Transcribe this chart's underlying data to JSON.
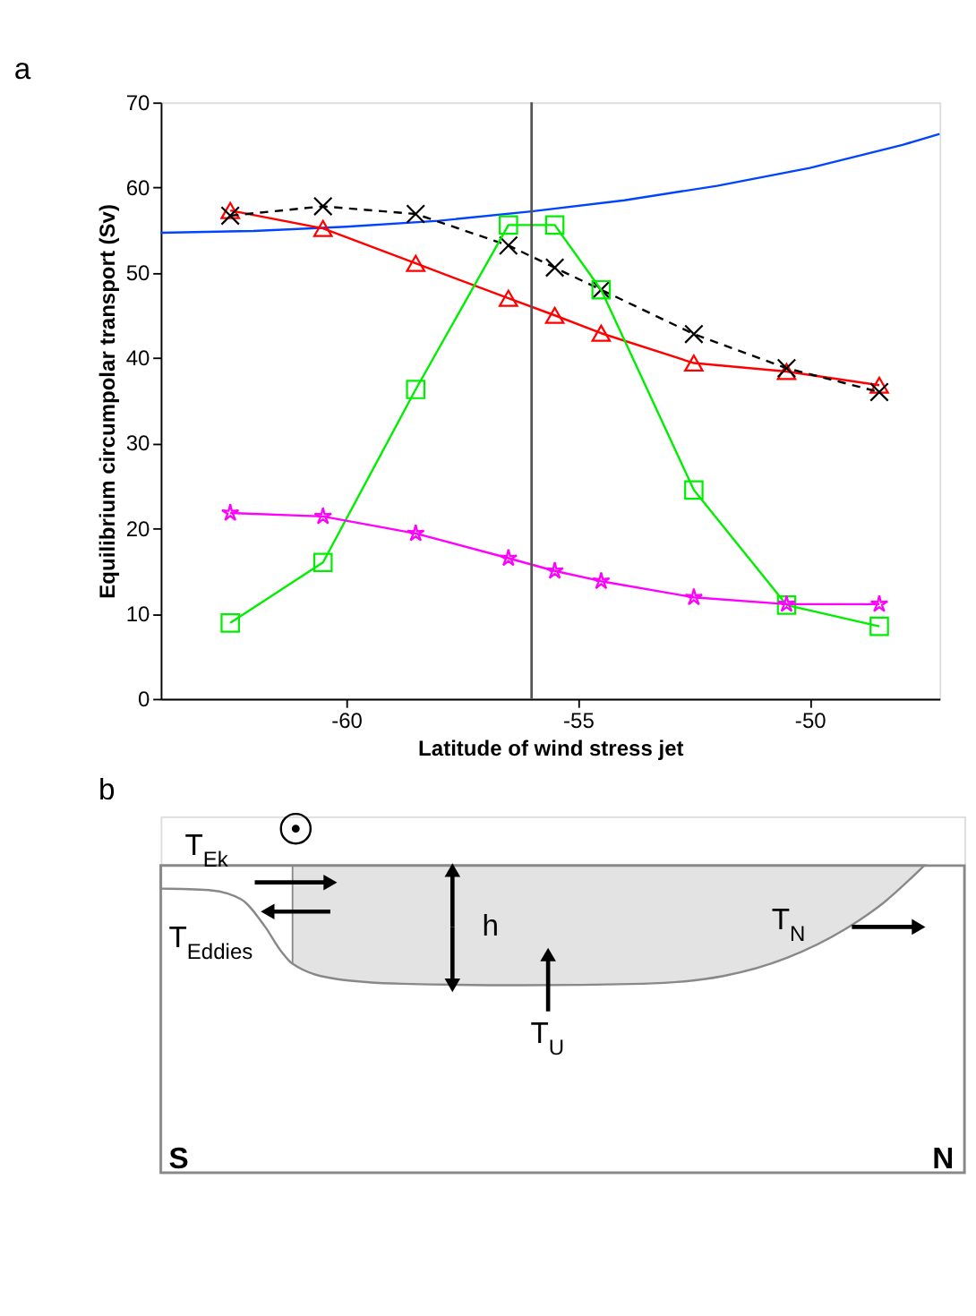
{
  "chart_data": [
    {
      "type": "line",
      "title": "a",
      "xlabel": "Latitude of wind stress jet",
      "ylabel": "Equilibrium circumpolar transport (Sv)",
      "x": [
        -62.5,
        -60.5,
        -58.5,
        -56.5,
        -55.5,
        -54.5,
        -52.5,
        -50.5,
        -48.5
      ],
      "xlim": [
        -64,
        -47.2
      ],
      "ylim": [
        0,
        70
      ],
      "xticks": [
        -60,
        -55,
        -50
      ],
      "yticks": [
        0,
        10,
        20,
        30,
        40,
        50,
        60,
        70
      ],
      "grid": false,
      "series": [
        {
          "color": "#0044ff",
          "marker": "none",
          "line_style": "solid",
          "x": [
            -64,
            -62,
            -60,
            -58,
            -56,
            -54,
            -52,
            -50,
            -48,
            -47.2
          ],
          "values": [
            54.7,
            54.9,
            55.4,
            56.1,
            57.2,
            58.5,
            60.2,
            62.3,
            65.0,
            66.3
          ]
        },
        {
          "color": "#ff0000",
          "marker": "triangle",
          "line_style": "solid",
          "values": [
            57.3,
            55.2,
            51.1,
            47.0,
            45.0,
            42.9,
            39.4,
            38.4,
            36.8
          ]
        },
        {
          "color": "#000000",
          "marker": "cross",
          "line_style": "dashed",
          "values": [
            56.7,
            57.8,
            56.9,
            53.2,
            50.6,
            48.0,
            42.8,
            38.8,
            36.0
          ]
        },
        {
          "color": "#00ee00",
          "marker": "square",
          "line_style": "solid",
          "values": [
            8.9,
            16.0,
            36.3,
            55.6,
            55.6,
            48.0,
            24.5,
            11.0,
            8.5
          ]
        },
        {
          "color": "#ff00ff",
          "marker": "star",
          "line_style": "solid",
          "values": [
            21.8,
            21.4,
            19.4,
            16.5,
            15.0,
            13.8,
            11.9,
            11.1,
            11.1
          ]
        }
      ],
      "ref_lines": [
        {
          "axis": "x",
          "value": -56,
          "color": "#555555"
        }
      ]
    },
    {
      "type": "other",
      "title": "b",
      "annotations": [
        "T$_{Ek}$",
        "T$_{Eddies}$",
        "h",
        "T$_{U}$",
        "T$_{N}$",
        "S",
        "N"
      ]
    }
  ]
}
